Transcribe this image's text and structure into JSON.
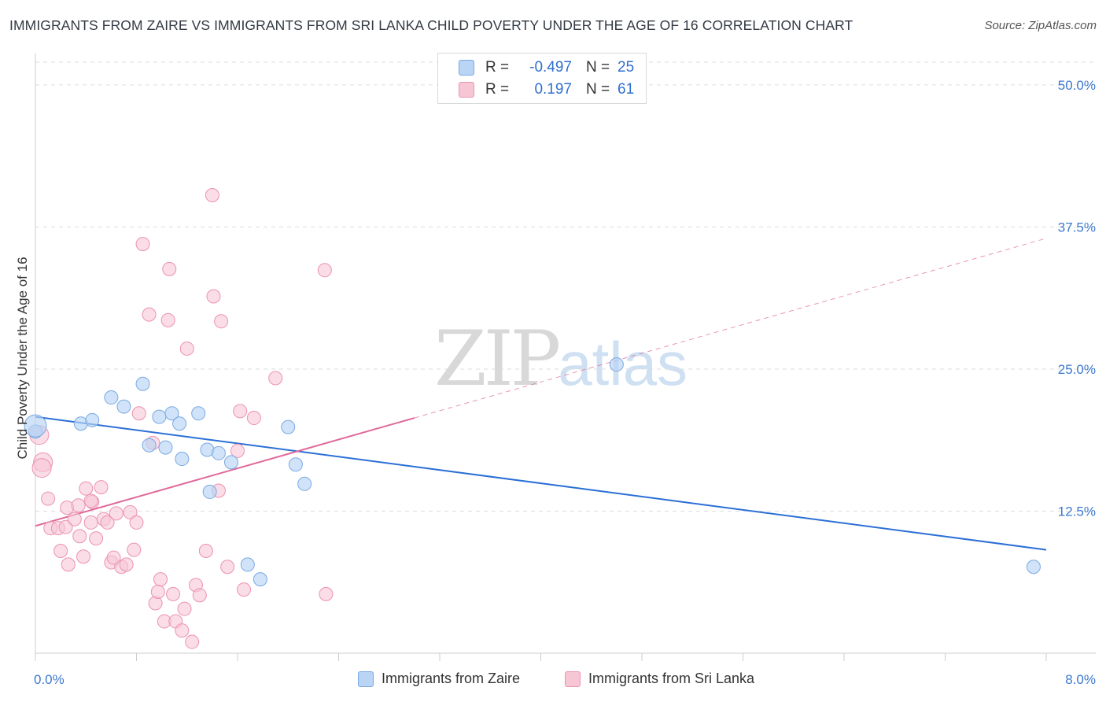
{
  "header": {
    "title": "IMMIGRANTS FROM ZAIRE VS IMMIGRANTS FROM SRI LANKA CHILD POVERTY UNDER THE AGE OF 16 CORRELATION CHART",
    "source": "Source: ZipAtlas.com"
  },
  "watermark": {
    "zip": "ZIP",
    "atlas": "atlas"
  },
  "stats_legend": {
    "rows": [
      {
        "r_label": "R =",
        "r_value": "-0.497",
        "n_label": "N =",
        "n_value": "25",
        "color": "#a9c8f0"
      },
      {
        "r_label": "R =",
        "r_value": "0.197",
        "n_label": "N =",
        "n_value": "61",
        "color": "#f5b8cb"
      }
    ]
  },
  "bottom_legend": {
    "zaire": "Immigrants from Zaire",
    "srilanka": "Immigrants from Sri Lanka"
  },
  "colors": {
    "zaire_fill": "#b9d4f4",
    "zaire_stroke": "#7aa9e3",
    "zaire_line": "#2b6fd6",
    "srilanka_fill": "#f7c6d5",
    "srilanka_stroke": "#ec93b0",
    "srilanka_line": "#e0699a",
    "tick_label": "#3b78d0",
    "grid": "#dddddd"
  },
  "chart_data": {
    "type": "scatter",
    "title": "IMMIGRANTS FROM ZAIRE VS IMMIGRANTS FROM SRI LANKA CHILD POVERTY UNDER THE AGE OF 16 CORRELATION CHART",
    "xlabel": "",
    "ylabel": "Child Poverty Under the Age of 16",
    "xlim": [
      0,
      8
    ],
    "ylim": [
      0,
      52
    ],
    "x_tick_labels": {
      "left": "0.0%",
      "right": "8.0%"
    },
    "y_ticks": [
      12.5,
      25.0,
      37.5,
      50.0
    ],
    "y_tick_labels": [
      "12.5%",
      "25.0%",
      "37.5%",
      "50.0%"
    ],
    "grid": true,
    "legend_position": "top-center",
    "series": [
      {
        "name": "Immigrants from Zaire",
        "points": [
          [
            0.0,
            19.5
          ],
          [
            0.36,
            20.2
          ],
          [
            0.45,
            20.5
          ],
          [
            0.6,
            22.5
          ],
          [
            0.7,
            21.7
          ],
          [
            0.85,
            23.7
          ],
          [
            0.9,
            18.3
          ],
          [
            0.98,
            20.8
          ],
          [
            1.03,
            18.1
          ],
          [
            1.08,
            21.1
          ],
          [
            1.14,
            20.2
          ],
          [
            1.16,
            17.1
          ],
          [
            1.29,
            21.1
          ],
          [
            1.36,
            17.9
          ],
          [
            1.38,
            14.2
          ],
          [
            1.45,
            17.6
          ],
          [
            1.55,
            16.8
          ],
          [
            1.68,
            7.8
          ],
          [
            1.78,
            6.5
          ],
          [
            2.0,
            19.9
          ],
          [
            2.06,
            16.6
          ],
          [
            2.13,
            14.9
          ],
          [
            4.6,
            25.4
          ],
          [
            7.9,
            7.6
          ],
          [
            0.0,
            20.0
          ]
        ],
        "trend": {
          "x": [
            0.0,
            8.0
          ],
          "y": [
            20.8,
            9.1
          ]
        }
      },
      {
        "name": "Immigrants from Sri Lanka",
        "points": [
          [
            0.03,
            19.2
          ],
          [
            0.06,
            16.8
          ],
          [
            0.05,
            16.3
          ],
          [
            0.1,
            13.6
          ],
          [
            0.12,
            11.0
          ],
          [
            0.18,
            11.0
          ],
          [
            0.2,
            9.0
          ],
          [
            0.24,
            11.1
          ],
          [
            0.25,
            12.8
          ],
          [
            0.26,
            7.8
          ],
          [
            0.31,
            11.8
          ],
          [
            0.34,
            13.0
          ],
          [
            0.35,
            10.3
          ],
          [
            0.38,
            8.5
          ],
          [
            0.4,
            14.5
          ],
          [
            0.44,
            11.5
          ],
          [
            0.45,
            13.3
          ],
          [
            0.48,
            10.1
          ],
          [
            0.52,
            14.6
          ],
          [
            0.54,
            11.8
          ],
          [
            0.57,
            11.5
          ],
          [
            0.6,
            8.0
          ],
          [
            0.64,
            12.3
          ],
          [
            0.68,
            7.6
          ],
          [
            0.72,
            7.8
          ],
          [
            0.75,
            12.4
          ],
          [
            0.78,
            9.1
          ],
          [
            0.8,
            11.5
          ],
          [
            0.82,
            21.1
          ],
          [
            0.85,
            36.0
          ],
          [
            0.9,
            29.8
          ],
          [
            0.93,
            18.5
          ],
          [
            0.95,
            4.4
          ],
          [
            0.97,
            5.4
          ],
          [
            0.99,
            6.5
          ],
          [
            1.02,
            2.8
          ],
          [
            1.05,
            29.3
          ],
          [
            1.06,
            33.8
          ],
          [
            1.09,
            5.2
          ],
          [
            1.11,
            2.8
          ],
          [
            1.16,
            2.0
          ],
          [
            1.18,
            3.9
          ],
          [
            1.2,
            26.8
          ],
          [
            1.24,
            1.0
          ],
          [
            1.27,
            6.0
          ],
          [
            1.3,
            5.1
          ],
          [
            1.35,
            9.0
          ],
          [
            1.4,
            40.3
          ],
          [
            1.41,
            31.4
          ],
          [
            1.45,
            14.3
          ],
          [
            1.47,
            29.2
          ],
          [
            1.52,
            7.6
          ],
          [
            1.6,
            17.8
          ],
          [
            1.62,
            21.3
          ],
          [
            1.65,
            5.6
          ],
          [
            1.73,
            20.7
          ],
          [
            1.9,
            24.2
          ],
          [
            2.29,
            33.7
          ],
          [
            0.44,
            13.4
          ],
          [
            0.62,
            8.4
          ],
          [
            2.3,
            5.2
          ]
        ],
        "trend": {
          "x": [
            0.0,
            3.0
          ],
          "y": [
            11.2,
            20.7
          ]
        },
        "trend_extended": {
          "x": [
            3.0,
            8.0
          ],
          "y": [
            20.7,
            36.5
          ]
        }
      }
    ]
  }
}
